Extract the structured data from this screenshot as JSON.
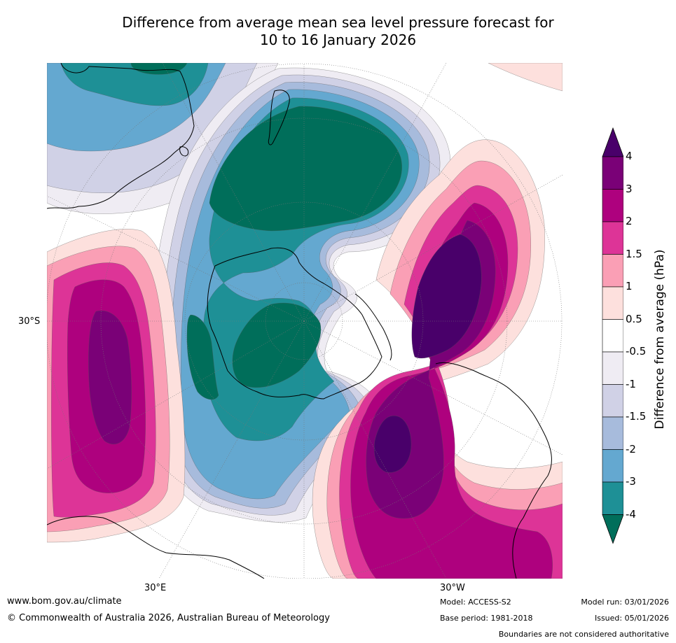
{
  "title": {
    "line1": "Difference from average mean sea level pressure forecast for",
    "line2": "10 to 16 January 2026"
  },
  "map": {
    "projection": "south-polar-stereographic",
    "lat_label": "30°S",
    "lon_labels": {
      "east": "30°E",
      "west": "30°W"
    },
    "colors": {
      "neg4": "#006e5a",
      "neg3": "#1e9096",
      "neg2": "#64a8d0",
      "neg1_5": "#a7bbdc",
      "neg1": "#d0d1e6",
      "neg0_5": "#efecf3",
      "zero": "#ffffff",
      "pos0_5": "#fde0dd",
      "pos1": "#fa9fb5",
      "pos1_5": "#dd3497",
      "pos2": "#ae017e",
      "pos3": "#7a0177",
      "pos4": "#49006a"
    }
  },
  "colorbar": {
    "ticks": [
      "4",
      "3",
      "2",
      "1.5",
      "1",
      "0.5",
      "-0.5",
      "-1",
      "-1.5",
      "-2",
      "-3",
      "-4"
    ],
    "label": "Difference from average (hPa)",
    "colors": [
      "#7a0177",
      "#ae017e",
      "#dd3497",
      "#fa9fb5",
      "#fde0dd",
      "#ffffff",
      "#efecf3",
      "#d0d1e6",
      "#a7bbdc",
      "#64a8d0",
      "#1e9096"
    ],
    "arrow_top": "#49006a",
    "arrow_bottom": "#006e5a"
  },
  "footer": {
    "website": "www.bom.gov.au/climate",
    "copyright": "© Commonwealth of Australia 2026, Australian Bureau of Meteorology",
    "model": "Model: ACCESS-S2",
    "base_period": "Base period: 1981-2018",
    "model_run": "Model run: 03/01/2026",
    "issued": "Issued: 05/01/2026",
    "disclaimer": "Boundaries are not considered authoritative"
  }
}
